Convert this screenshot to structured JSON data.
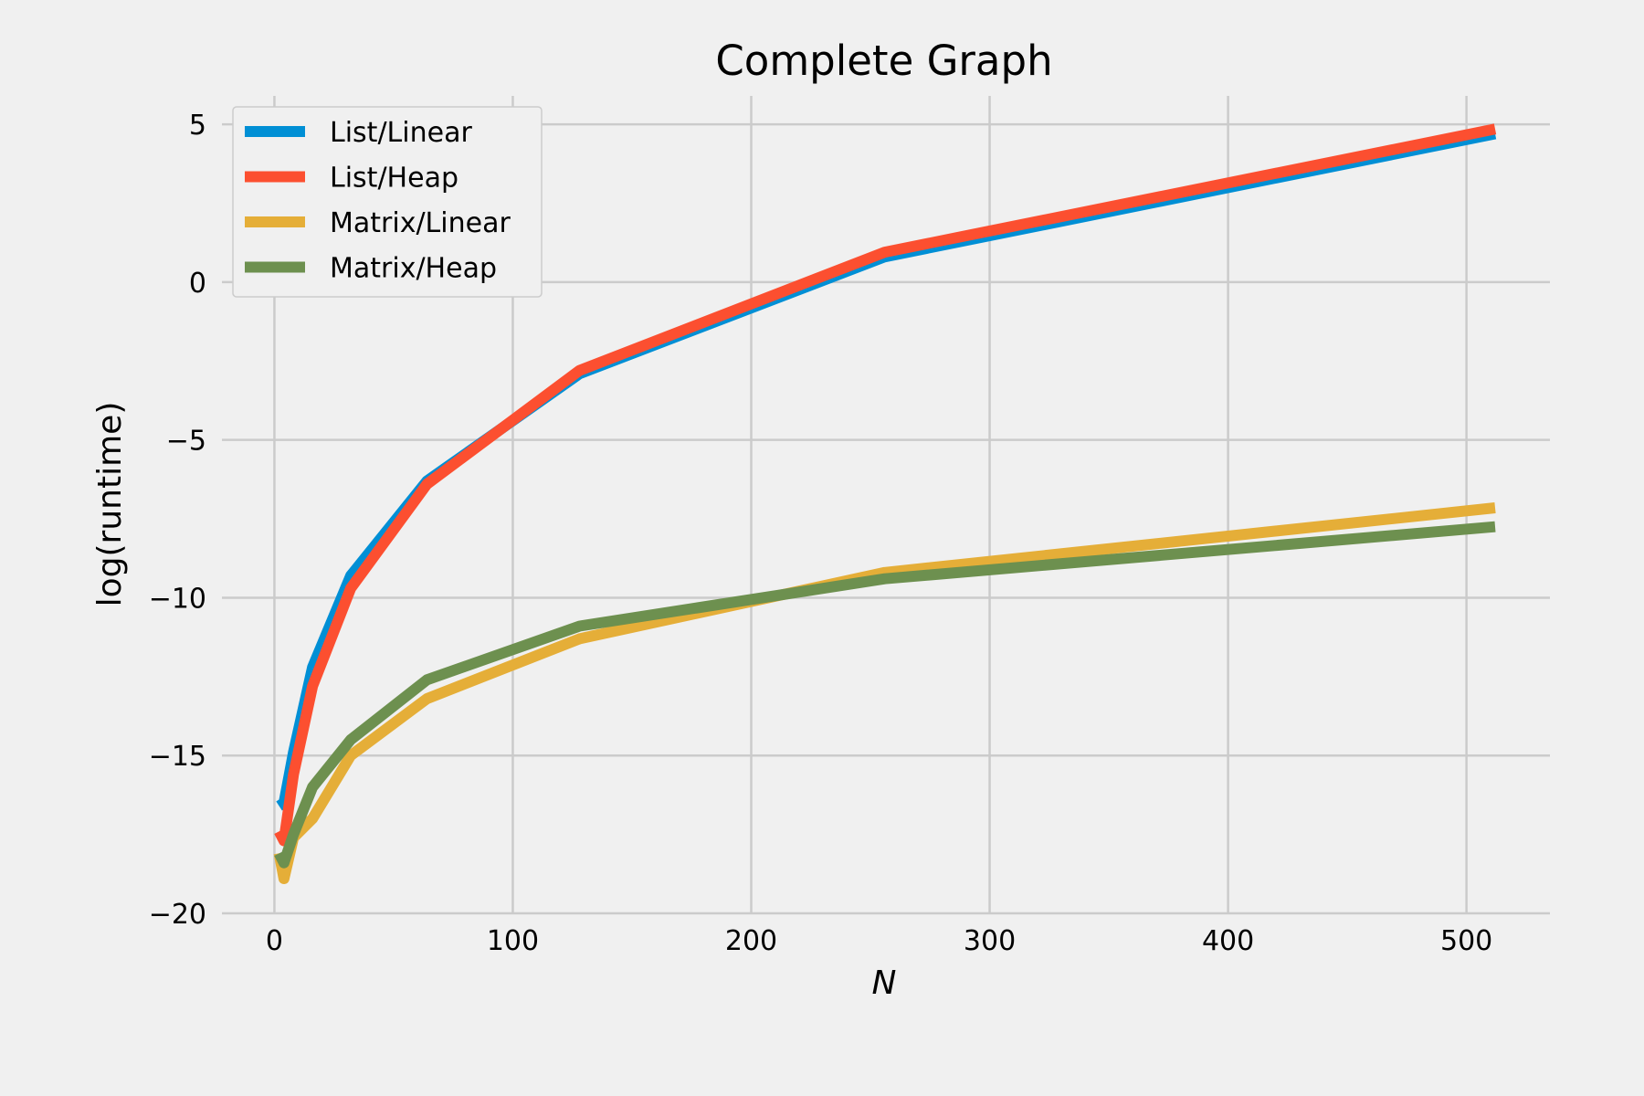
{
  "chart_data": {
    "type": "line",
    "title": "Complete Graph",
    "xlabel": "N",
    "ylabel": "log(runtime)",
    "xlim": [
      -22,
      535
    ],
    "ylim": [
      -20,
      5.9
    ],
    "x_ticks": [
      0,
      100,
      200,
      300,
      400,
      500
    ],
    "x_tick_labels": [
      "0",
      "100",
      "200",
      "300",
      "400",
      "500"
    ],
    "y_ticks": [
      5,
      0,
      -5,
      -10,
      -15,
      -20
    ],
    "y_tick_labels": [
      "5",
      "0",
      "−5",
      "−10",
      "−15",
      "−20"
    ],
    "grid": true,
    "legend_position": "top-left",
    "x": [
      2,
      4,
      8,
      16,
      32,
      64,
      128,
      256,
      512
    ],
    "series": [
      {
        "name": "List/Linear",
        "color": "#008fd5",
        "values": [
          -16.6,
          -16.5,
          -14.9,
          -12.2,
          -9.3,
          -6.3,
          -2.9,
          0.8,
          4.7
        ]
      },
      {
        "name": "List/Heap",
        "color": "#fc4f30",
        "values": [
          -17.4,
          -17.7,
          -15.6,
          -12.8,
          -9.7,
          -6.4,
          -2.8,
          0.95,
          4.85
        ]
      },
      {
        "name": "Matrix/Linear",
        "color": "#e5ae38",
        "values": [
          -18.1,
          -18.9,
          -17.6,
          -17.0,
          -15.0,
          -13.2,
          -11.3,
          -9.2,
          -7.15
        ]
      },
      {
        "name": "Matrix/Heap",
        "color": "#6d904f",
        "values": [
          -18.1,
          -18.4,
          -17.5,
          -16.0,
          -14.5,
          -12.6,
          -10.9,
          -9.4,
          -7.75
        ]
      }
    ]
  }
}
